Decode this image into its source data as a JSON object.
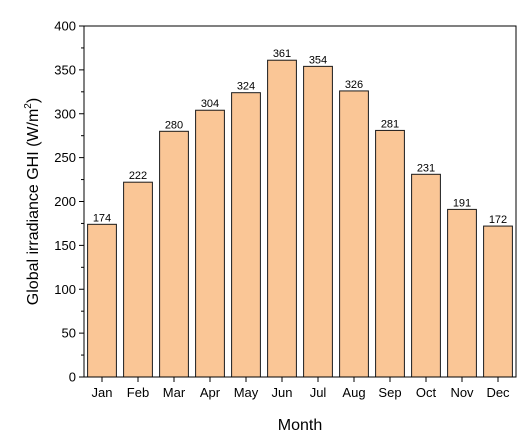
{
  "chart_data": {
    "type": "bar",
    "categories": [
      "Jan",
      "Feb",
      "Mar",
      "Apr",
      "May",
      "Jun",
      "Jul",
      "Aug",
      "Sep",
      "Oct",
      "Nov",
      "Dec"
    ],
    "values": [
      174,
      222,
      280,
      304,
      324,
      361,
      354,
      326,
      281,
      231,
      191,
      172
    ],
    "xlabel": "Month",
    "ylabel_main": "Global irradiance GHI (W/m",
    "ylabel_sup": "2",
    "ylabel_close": ")",
    "ylim": [
      0,
      400
    ],
    "yticks": [
      0,
      50,
      100,
      150,
      200,
      250,
      300,
      350,
      400
    ],
    "grid": false,
    "bar_color": "#FAC696",
    "bar_edge_color": "#1a1a1a"
  }
}
